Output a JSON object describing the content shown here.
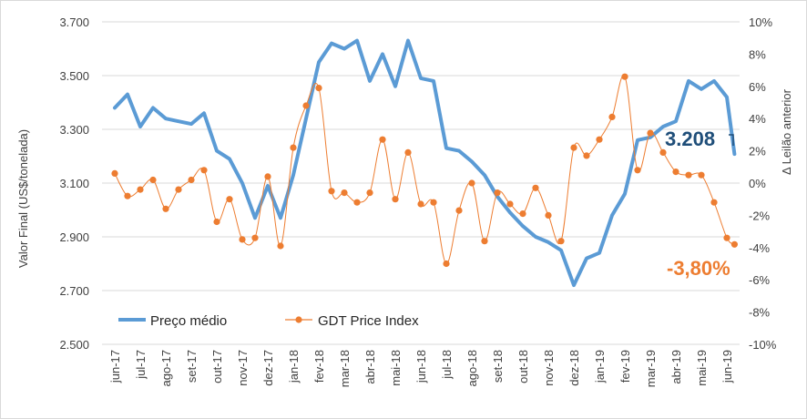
{
  "chart_data": {
    "type": "line",
    "categories": [
      "jun-17",
      "jul-17",
      "ago-17",
      "set-17",
      "out-17",
      "nov-17",
      "dez-17",
      "jan-18",
      "fev-18",
      "mar-18",
      "abr-18",
      "mai-18",
      "jun-18",
      "jul-18",
      "ago-18",
      "set-18",
      "out-18",
      "nov-18",
      "dez-18",
      "jan-19",
      "fev-19",
      "mar-19",
      "abr-19",
      "mai-19",
      "jun-19"
    ],
    "left_axis": {
      "label": "Valor Final (US$/tonelada)",
      "ylim": [
        2500,
        3700
      ],
      "ticks": [
        "2.500",
        "2.700",
        "2.900",
        "3.100",
        "3.300",
        "3.500",
        "3.700"
      ],
      "tick_values": [
        2500,
        2700,
        2900,
        3100,
        3300,
        3500,
        3700
      ]
    },
    "right_axis": {
      "label": "Δ Leilão anterior",
      "ylim": [
        -10,
        10
      ],
      "ticks": [
        "-10%",
        "-8%",
        "-6%",
        "-4%",
        "-2%",
        "0%",
        "2%",
        "4%",
        "6%",
        "8%",
        "10%"
      ],
      "tick_values": [
        -10,
        -8,
        -6,
        -4,
        -2,
        0,
        2,
        4,
        6,
        8,
        10
      ]
    },
    "grid": true,
    "legend": {
      "position": "bottom-left"
    },
    "series": [
      {
        "name": "Preço médio",
        "axis": "left",
        "color": "#5B9BD5",
        "x": [
          0,
          0.5,
          1,
          1.5,
          2,
          2.5,
          3,
          3.5,
          4,
          4.5,
          5,
          5.5,
          6,
          6.5,
          7,
          7.5,
          8,
          8.5,
          9,
          9.5,
          10,
          10.5,
          11,
          11.5,
          12,
          12.5,
          13,
          13.5,
          14,
          14.5,
          15,
          15.5,
          16,
          16.5,
          17,
          17.5,
          18,
          18.5,
          19,
          19.5,
          20,
          20.5,
          21,
          21.5,
          22,
          22.5,
          23,
          23.5,
          24,
          24.3
        ],
        "values": [
          3380,
          3430,
          3310,
          3380,
          3340,
          3330,
          3320,
          3360,
          3220,
          3190,
          3100,
          2970,
          3090,
          2970,
          3130,
          3340,
          3550,
          3620,
          3600,
          3630,
          3480,
          3580,
          3460,
          3630,
          3490,
          3480,
          3230,
          3220,
          3180,
          3130,
          3050,
          2990,
          2940,
          2900,
          2880,
          2850,
          2720,
          2820,
          2840,
          2980,
          3060,
          3260,
          3270,
          3310,
          3330,
          3480,
          3450,
          3480,
          3420,
          3208
        ]
      },
      {
        "name": "GDT Price Index",
        "axis": "right",
        "color": "#ED7D31",
        "x": [
          0,
          0.5,
          1,
          1.5,
          2,
          2.5,
          3,
          3.5,
          4,
          4.5,
          5,
          5.5,
          6,
          6.5,
          7,
          7.5,
          8,
          8.5,
          9,
          9.5,
          10,
          10.5,
          11,
          11.5,
          12,
          12.5,
          13,
          13.5,
          14,
          14.5,
          15,
          15.5,
          16,
          16.5,
          17,
          17.5,
          18,
          18.5,
          19,
          19.5,
          20,
          20.5,
          21,
          21.5,
          22,
          22.5,
          23,
          23.5,
          24,
          24.3
        ],
        "values": [
          0.6,
          -0.8,
          -0.4,
          0.2,
          -1.6,
          -0.4,
          0.2,
          0.8,
          -2.4,
          -1,
          -3.5,
          -3.4,
          0.4,
          -3.9,
          2.2,
          4.8,
          5.9,
          -0.5,
          -0.6,
          -1.2,
          -0.6,
          2.7,
          -1,
          1.9,
          -1.3,
          -1.2,
          -5,
          -1.7,
          0,
          -3.6,
          -0.6,
          -1.3,
          -1.9,
          -0.3,
          -2,
          -3.6,
          2.2,
          1.7,
          2.7,
          4.1,
          6.6,
          0.8,
          3.1,
          1.9,
          0.7,
          0.5,
          0.5,
          -1.2,
          -3.4,
          -3.8
        ]
      }
    ],
    "annotations": {
      "last_price": "3.208",
      "last_change": "-3,80%"
    }
  }
}
